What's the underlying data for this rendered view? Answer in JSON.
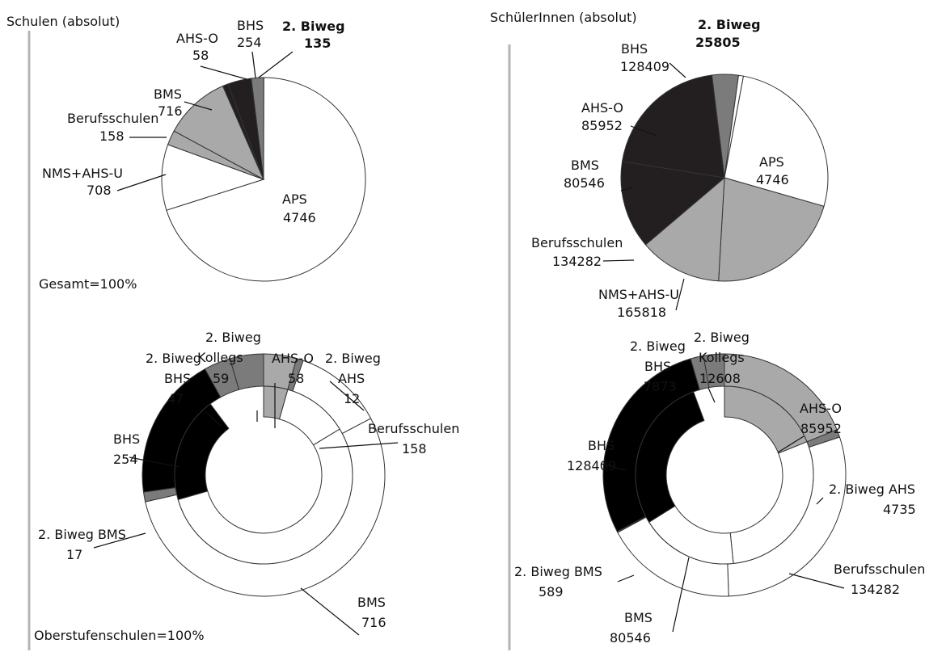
{
  "colors": {
    "white": "#ffffff",
    "light_gray": "#a9a9a9",
    "dark_gray": "#7b7b7b",
    "near_black": "#231f20",
    "black": "#000000",
    "stroke": "#333333"
  },
  "chart_data": [
    {
      "type": "pie",
      "title": "Schulen (absolut)",
      "footer": "Gesamt=100%",
      "slices": [
        {
          "name": "2. Biweg",
          "value": 135,
          "color": "#7b7b7b",
          "bold": true
        },
        {
          "name": "APS",
          "value": 4746,
          "color": "#ffffff"
        },
        {
          "name": "NMS+AHS-U",
          "value": 708,
          "color": "#ffffff"
        },
        {
          "name": "Berufsschulen",
          "value": 158,
          "color": "#a9a9a9"
        },
        {
          "name": "BMS",
          "value": 716,
          "color": "#a9a9a9"
        },
        {
          "name": "AHS-O",
          "value": 58,
          "color": "#231f20"
        },
        {
          "name": "BHS",
          "value": 254,
          "color": "#231f20"
        }
      ]
    },
    {
      "type": "pie",
      "title": "SchülerInnen (absolut)",
      "slices": [
        {
          "name": "2. Biweg",
          "value": 25805,
          "color": "#7b7b7b",
          "bold": true
        },
        {
          "name": "APS",
          "value": 4746,
          "color": "#ffffff"
        },
        {
          "name": "NMS+AHS-U",
          "value": 165818,
          "color": "#ffffff"
        },
        {
          "name": "Berufsschulen",
          "value": 134282,
          "color": "#a9a9a9"
        },
        {
          "name": "BMS",
          "value": 80546,
          "color": "#a9a9a9"
        },
        {
          "name": "AHS-O",
          "value": 85952,
          "color": "#231f20"
        },
        {
          "name": "BHS",
          "value": 128409,
          "color": "#231f20"
        }
      ]
    },
    {
      "type": "donut",
      "footer": "Oberstufenschulen=100%",
      "inner": [
        {
          "name": "AHS-O",
          "value": 58,
          "color": "#a9a9a9"
        },
        {
          "name": "Berufsschulen",
          "value": 158,
          "color": "#ffffff"
        },
        {
          "name": "BMS",
          "value": 716,
          "color": "#ffffff"
        },
        {
          "name": "BHS",
          "value": 254,
          "color": "#000000"
        }
      ],
      "outer": [
        {
          "name": "AHS-O",
          "value": 58,
          "color": "#a9a9a9"
        },
        {
          "name": "2. Biweg AHS",
          "value": 12,
          "color": "#7b7b7b"
        },
        {
          "name": "Berufsschulen",
          "value": 158,
          "color": "#ffffff"
        },
        {
          "name": "BMS",
          "value": 716,
          "color": "#ffffff"
        },
        {
          "name": "2. Biweg BMS",
          "value": 17,
          "color": "#7b7b7b"
        },
        {
          "name": "BHS",
          "value": 254,
          "color": "#000000"
        },
        {
          "name": "2. Biweg BHS",
          "value": 47,
          "color": "#7b7b7b"
        },
        {
          "name": "2. Biweg Kollegs",
          "value": 59,
          "color": "#7b7b7b"
        }
      ]
    },
    {
      "type": "donut",
      "inner": [
        {
          "name": "AHS-O",
          "value": 85952,
          "color": "#a9a9a9"
        },
        {
          "name": "Berufsschulen",
          "value": 134282,
          "color": "#ffffff"
        },
        {
          "name": "BMS",
          "value": 80546,
          "color": "#ffffff"
        },
        {
          "name": "BHS",
          "value": 128409,
          "color": "#000000"
        }
      ],
      "outer": [
        {
          "name": "AHS-O",
          "value": 85952,
          "color": "#a9a9a9"
        },
        {
          "name": "2. Biweg AHS",
          "value": 4735,
          "color": "#7b7b7b"
        },
        {
          "name": "Berufsschulen",
          "value": 134282,
          "color": "#ffffff"
        },
        {
          "name": "BMS",
          "value": 80546,
          "color": "#ffffff"
        },
        {
          "name": "2. Biweg BMS",
          "value": 589,
          "color": "#7b7b7b"
        },
        {
          "name": "BHS",
          "value": 128409,
          "color": "#000000"
        },
        {
          "name": "2. Biweg BHS",
          "value": 7873,
          "color": "#7b7b7b"
        },
        {
          "name": "2. Biweg Kollegs",
          "value": 12608,
          "color": "#7b7b7b"
        }
      ]
    }
  ]
}
